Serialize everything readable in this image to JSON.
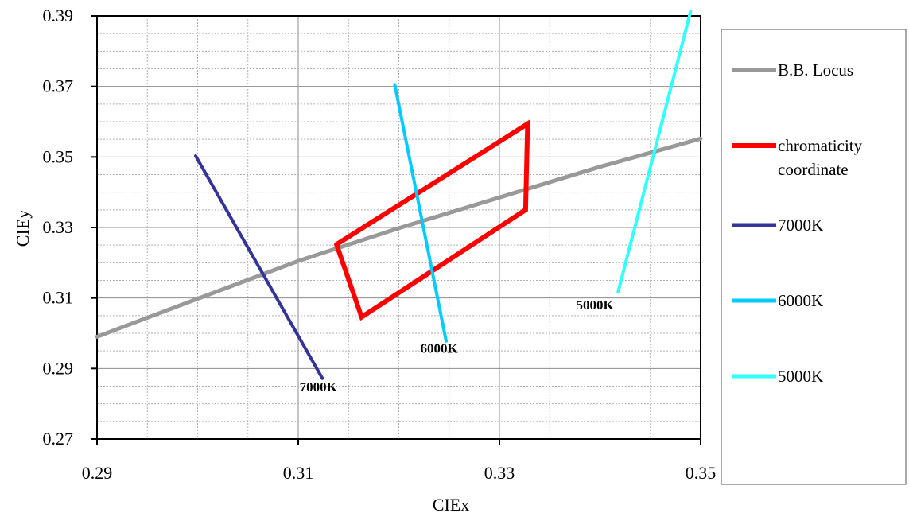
{
  "chart_data": {
    "type": "line",
    "title": "",
    "xlabel": "CIEx",
    "ylabel": "CIEy",
    "xlim": [
      0.29,
      0.35
    ],
    "ylim": [
      0.27,
      0.39
    ],
    "x_ticks": [
      "0.29",
      "0.31",
      "0.33",
      "0.35"
    ],
    "x_tick_values": [
      0.29,
      0.31,
      0.33,
      0.35
    ],
    "y_ticks": [
      "0.27",
      "0.29",
      "0.31",
      "0.33",
      "0.35",
      "0.37",
      "0.39"
    ],
    "y_tick_values": [
      0.27,
      0.29,
      0.31,
      0.33,
      0.35,
      0.37,
      0.39
    ],
    "minor_gridline_step_x": 0.005,
    "minor_gridline_step_y": 0.005,
    "grid": true,
    "legend_position": "right",
    "series": [
      {
        "name": "B.B. Locus",
        "color": "#999999",
        "x": [
          0.29,
          0.3,
          0.31,
          0.32,
          0.33,
          0.34,
          0.35
        ],
        "y": [
          0.299,
          0.3098,
          0.3205,
          0.3298,
          0.3385,
          0.3472,
          0.3552
        ]
      },
      {
        "name": "chromaticity coordinate",
        "color": "#ff0000",
        "x": [
          0.3138,
          0.3328,
          0.3326,
          0.3163,
          0.3138
        ],
        "y": [
          0.3252,
          0.3594,
          0.335,
          0.3046,
          0.3252
        ]
      },
      {
        "name": "7000K",
        "color": "#333399",
        "x": [
          0.2998,
          0.3124
        ],
        "y": [
          0.3503,
          0.2872
        ]
      },
      {
        "name": "6000K",
        "color": "#00ccff",
        "x": [
          0.3196,
          0.3247
        ],
        "y": [
          0.3705,
          0.2978
        ]
      },
      {
        "name": "5000K",
        "color": "#33ffff",
        "x": [
          0.3418,
          0.349
        ],
        "y": [
          0.3118,
          0.3912
        ]
      }
    ],
    "annotations": [
      {
        "text": "7000K",
        "x": 0.312,
        "y": 0.2835
      },
      {
        "text": "6000K",
        "x": 0.324,
        "y": 0.2945
      },
      {
        "text": "5000K",
        "x": 0.3395,
        "y": 0.3068
      }
    ]
  }
}
